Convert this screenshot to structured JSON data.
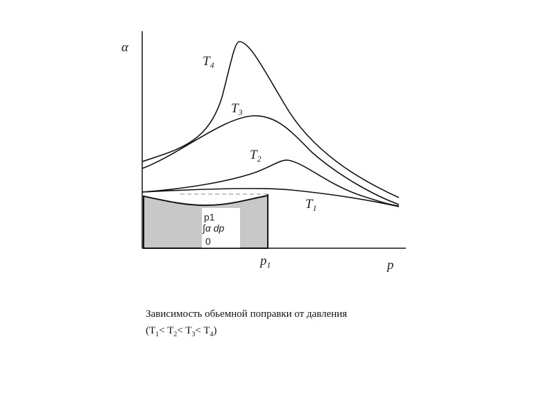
{
  "figure": {
    "axis_labels": {
      "y": "α",
      "x": "p",
      "x_mark": {
        "letter": "p",
        "sub": "1"
      }
    },
    "curves": [
      {
        "letter": "T",
        "sub": "1"
      },
      {
        "letter": "T",
        "sub": "2"
      },
      {
        "letter": "T",
        "sub": "3"
      },
      {
        "letter": "T",
        "sub": "4"
      }
    ],
    "integral": {
      "upper": "p1",
      "expr": "∫α dp",
      "lower": "0"
    }
  },
  "caption": {
    "line1": "Зависимость обьемной поправки от давления",
    "line2": [
      {
        "text": "(T",
        "sub": "1"
      },
      {
        "text": "< T",
        "sub": "2"
      },
      {
        "text": "< T",
        "sub": "3"
      },
      {
        "text": "< T",
        "sub": "4"
      },
      {
        "text": ")"
      }
    ]
  }
}
